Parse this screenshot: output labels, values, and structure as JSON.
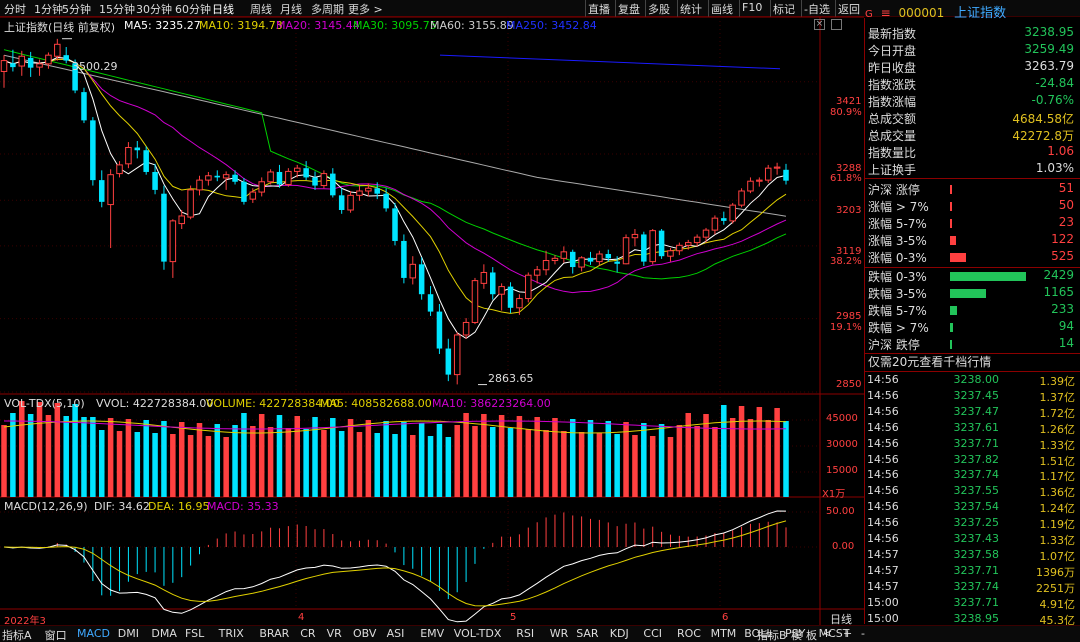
{
  "toolbar": {
    "periods": [
      "分时",
      "1分钟",
      "5分钟",
      "15分钟",
      "30分钟",
      "60分钟",
      "日线",
      "周线",
      "月线",
      "多周期",
      "更多 >"
    ],
    "active_period": "日线",
    "right": [
      "直播",
      "复盘",
      "多股",
      "统计",
      "画线",
      "F10",
      "标记",
      "-自选",
      "返回"
    ]
  },
  "header": {
    "g_label": "G",
    "menu_icon": "menu-icon",
    "code": "000001",
    "name": "上证指数"
  },
  "main_chart": {
    "title": "上证指数(日线 前复权)",
    "ma5": "MA5: 3235.27",
    "ma10": "MA10: 3194.73",
    "ma20": "MA20: 3145.44",
    "ma30": "MA30: 3095.75",
    "ma60": "MA60: 3155.89",
    "ma250": "MA250: 3452.84",
    "high_label": "3500.29",
    "low_label": "2863.65",
    "colors": {
      "ma5": "#ffffff",
      "ma10": "#e0d000",
      "ma20": "#d000d0",
      "ma30": "#00d000",
      "ma60": "#aaaaaa",
      "ma250": "#1a1aff",
      "up": "#ff4040",
      "down": "#00e5ff"
    },
    "y_axis": [
      "3421",
      "80.9%",
      "3288",
      "61.8%",
      "3203",
      "3119",
      "38.2%",
      "2985",
      "19.1%",
      "2850"
    ]
  },
  "vol_chart": {
    "title": "VOL-TDX(5,10)",
    "vvol": "VVOL: 422728384.00",
    "volume": "VOLUME: 422728384.00",
    "ma5": "MA5: 408582688.00",
    "ma10": "MA10: 386223264.00",
    "y_axis": [
      "45000",
      "30000",
      "15000"
    ],
    "unit": "X1万"
  },
  "macd_chart": {
    "title": "MACD(12,26,9)",
    "dif": "DIF: 34.62",
    "dea": "DEA: 16.95",
    "macd": "MACD: 35.33",
    "y_axis": [
      "50.00",
      "0.00"
    ]
  },
  "x_axis": {
    "labels": [
      "2022年3",
      "4",
      "5",
      "6"
    ],
    "period_label": "日线"
  },
  "stats": [
    {
      "k": "最新指数",
      "v": "3238.95",
      "c": "#22c45a"
    },
    {
      "k": "今日开盘",
      "v": "3259.49",
      "c": "#22c45a"
    },
    {
      "k": "昨日收盘",
      "v": "3263.79",
      "c": "#dddddd"
    },
    {
      "k": "指数涨跌",
      "v": "-24.84",
      "c": "#22c45a"
    },
    {
      "k": "指数涨幅",
      "v": "-0.76%",
      "c": "#22c45a"
    },
    {
      "k": "总成交额",
      "v": "4684.58亿",
      "c": "#e0c020"
    },
    {
      "k": "总成交量",
      "v": "42272.8万",
      "c": "#e0c020"
    },
    {
      "k": "指数量比",
      "v": "1.06",
      "c": "#ff4040"
    },
    {
      "k": "上证换手",
      "v": "1.03%",
      "c": "#dddddd"
    }
  ],
  "breadth": [
    {
      "k": "沪深 涨停",
      "v": "51",
      "c": "#ff4040",
      "w": 2
    },
    {
      "k": "涨幅 > 7%",
      "v": "50",
      "c": "#ff4040",
      "w": 2
    },
    {
      "k": "涨幅 5-7%",
      "v": "23",
      "c": "#ff4040",
      "w": 2
    },
    {
      "k": "涨幅 3-5%",
      "v": "122",
      "c": "#ff4040",
      "w": 6
    },
    {
      "k": "涨幅 0-3%",
      "v": "525",
      "c": "#ff4040",
      "w": 16
    },
    {
      "k": "跌幅 0-3%",
      "v": "2429",
      "c": "#22c45a",
      "w": 76
    },
    {
      "k": "跌幅 3-5%",
      "v": "1165",
      "c": "#22c45a",
      "w": 36
    },
    {
      "k": "跌幅 5-7%",
      "v": "233",
      "c": "#22c45a",
      "w": 7
    },
    {
      "k": "跌幅 > 7%",
      "v": "94",
      "c": "#22c45a",
      "w": 3
    },
    {
      "k": "沪深 跌停",
      "v": "14",
      "c": "#22c45a",
      "w": 2
    }
  ],
  "promo": "仅需20元查看千档行情",
  "ticks": [
    {
      "t": "14:56",
      "p": "3238.00",
      "a": "1.39亿"
    },
    {
      "t": "14:56",
      "p": "3237.45",
      "a": "1.37亿"
    },
    {
      "t": "14:56",
      "p": "3237.47",
      "a": "1.72亿"
    },
    {
      "t": "14:56",
      "p": "3237.61",
      "a": "1.26亿"
    },
    {
      "t": "14:56",
      "p": "3237.71",
      "a": "1.33亿"
    },
    {
      "t": "14:56",
      "p": "3237.82",
      "a": "1.51亿"
    },
    {
      "t": "14:56",
      "p": "3237.74",
      "a": "1.17亿"
    },
    {
      "t": "14:56",
      "p": "3237.55",
      "a": "1.36亿"
    },
    {
      "t": "14:56",
      "p": "3237.54",
      "a": "1.24亿"
    },
    {
      "t": "14:56",
      "p": "3237.25",
      "a": "1.19亿"
    },
    {
      "t": "14:56",
      "p": "3237.43",
      "a": "1.33亿"
    },
    {
      "t": "14:57",
      "p": "3237.58",
      "a": "1.07亿"
    },
    {
      "t": "14:57",
      "p": "3237.71",
      "a": "1396万"
    },
    {
      "t": "14:57",
      "p": "3237.74",
      "a": "2251万"
    },
    {
      "t": "15:00",
      "p": "3237.71",
      "a": "4.91亿"
    },
    {
      "t": "15:00",
      "p": "3238.95",
      "a": "45.3亿"
    }
  ],
  "bottom_tabs": [
    "指标A",
    "窗口",
    "MACD",
    "DMI",
    "DMA",
    "FSL",
    "TRIX",
    "BRAR",
    "CR",
    "VR",
    "OBV",
    "ASI",
    "EMV",
    "VOL-TDX",
    "RSI",
    "WR",
    "SAR",
    "KDJ",
    "CCI",
    "ROC",
    "MTM",
    "BOLL",
    "PSY",
    "MCST"
  ],
  "bottom_active": "MACD",
  "bottom_right": [
    "指标B",
    "模",
    "板",
    "<",
    "+",
    "-"
  ],
  "chart_data": {
    "type": "candlestick",
    "title": "上证指数(日线 前复权)",
    "x_labels": [
      "2022年3",
      "4",
      "5",
      "6"
    ],
    "ylim": [
      2850,
      3520
    ],
    "candles": [
      {
        "o": 3440,
        "h": 3470,
        "l": 3410,
        "c": 3460
      },
      {
        "o": 3455,
        "h": 3480,
        "l": 3440,
        "c": 3448
      },
      {
        "o": 3450,
        "h": 3478,
        "l": 3432,
        "c": 3468
      },
      {
        "o": 3465,
        "h": 3476,
        "l": 3430,
        "c": 3447
      },
      {
        "o": 3448,
        "h": 3462,
        "l": 3432,
        "c": 3454
      },
      {
        "o": 3454,
        "h": 3475,
        "l": 3445,
        "c": 3470
      },
      {
        "o": 3468,
        "h": 3500,
        "l": 3460,
        "c": 3490
      },
      {
        "o": 3470,
        "h": 3485,
        "l": 3455,
        "c": 3460
      },
      {
        "o": 3455,
        "h": 3462,
        "l": 3400,
        "c": 3405
      },
      {
        "o": 3402,
        "h": 3410,
        "l": 3345,
        "c": 3350
      },
      {
        "o": 3350,
        "h": 3356,
        "l": 3230,
        "c": 3240
      },
      {
        "o": 3240,
        "h": 3258,
        "l": 3190,
        "c": 3200
      },
      {
        "o": 3195,
        "h": 3260,
        "l": 3115,
        "c": 3250
      },
      {
        "o": 3252,
        "h": 3275,
        "l": 3245,
        "c": 3268
      },
      {
        "o": 3270,
        "h": 3310,
        "l": 3262,
        "c": 3300
      },
      {
        "o": 3300,
        "h": 3312,
        "l": 3280,
        "c": 3295
      },
      {
        "o": 3295,
        "h": 3302,
        "l": 3250,
        "c": 3255
      },
      {
        "o": 3255,
        "h": 3270,
        "l": 3214,
        "c": 3222
      },
      {
        "o": 3215,
        "h": 3230,
        "l": 3075,
        "c": 3090
      },
      {
        "o": 3090,
        "h": 3168,
        "l": 3060,
        "c": 3165
      },
      {
        "o": 3160,
        "h": 3185,
        "l": 3150,
        "c": 3174
      },
      {
        "o": 3172,
        "h": 3230,
        "l": 3168,
        "c": 3222
      },
      {
        "o": 3222,
        "h": 3248,
        "l": 3212,
        "c": 3240
      },
      {
        "o": 3240,
        "h": 3255,
        "l": 3230,
        "c": 3248
      },
      {
        "o": 3248,
        "h": 3258,
        "l": 3238,
        "c": 3245
      },
      {
        "o": 3244,
        "h": 3256,
        "l": 3222,
        "c": 3250
      },
      {
        "o": 3250,
        "h": 3258,
        "l": 3232,
        "c": 3237
      },
      {
        "o": 3237,
        "h": 3244,
        "l": 3195,
        "c": 3200
      },
      {
        "o": 3205,
        "h": 3225,
        "l": 3198,
        "c": 3218
      },
      {
        "o": 3218,
        "h": 3245,
        "l": 3210,
        "c": 3237
      },
      {
        "o": 3237,
        "h": 3260,
        "l": 3232,
        "c": 3255
      },
      {
        "o": 3255,
        "h": 3268,
        "l": 3226,
        "c": 3232
      },
      {
        "o": 3232,
        "h": 3262,
        "l": 3228,
        "c": 3256
      },
      {
        "o": 3256,
        "h": 3268,
        "l": 3245,
        "c": 3262
      },
      {
        "o": 3262,
        "h": 3275,
        "l": 3240,
        "c": 3245
      },
      {
        "o": 3245,
        "h": 3256,
        "l": 3222,
        "c": 3230
      },
      {
        "o": 3230,
        "h": 3258,
        "l": 3225,
        "c": 3252
      },
      {
        "o": 3252,
        "h": 3262,
        "l": 3208,
        "c": 3212
      },
      {
        "o": 3212,
        "h": 3225,
        "l": 3178,
        "c": 3185
      },
      {
        "o": 3185,
        "h": 3220,
        "l": 3180,
        "c": 3212
      },
      {
        "o": 3212,
        "h": 3230,
        "l": 3202,
        "c": 3220
      },
      {
        "o": 3220,
        "h": 3234,
        "l": 3210,
        "c": 3225
      },
      {
        "o": 3225,
        "h": 3236,
        "l": 3205,
        "c": 3215
      },
      {
        "o": 3215,
        "h": 3225,
        "l": 3182,
        "c": 3188
      },
      {
        "o": 3188,
        "h": 3198,
        "l": 3120,
        "c": 3128
      },
      {
        "o": 3128,
        "h": 3140,
        "l": 3050,
        "c": 3060
      },
      {
        "o": 3060,
        "h": 3100,
        "l": 3048,
        "c": 3085
      },
      {
        "o": 3085,
        "h": 3098,
        "l": 3020,
        "c": 3030
      },
      {
        "o": 3030,
        "h": 3045,
        "l": 2990,
        "c": 2998
      },
      {
        "o": 2998,
        "h": 3012,
        "l": 2920,
        "c": 2930
      },
      {
        "o": 2930,
        "h": 2948,
        "l": 2870,
        "c": 2882
      },
      {
        "o": 2882,
        "h": 2960,
        "l": 2864,
        "c": 2955
      },
      {
        "o": 2955,
        "h": 2986,
        "l": 2948,
        "c": 2978
      },
      {
        "o": 2978,
        "h": 3060,
        "l": 2975,
        "c": 3055
      },
      {
        "o": 3050,
        "h": 3085,
        "l": 3040,
        "c": 3070
      },
      {
        "o": 3070,
        "h": 3080,
        "l": 3020,
        "c": 3030
      },
      {
        "o": 3030,
        "h": 3050,
        "l": 3000,
        "c": 3044
      },
      {
        "o": 3044,
        "h": 3052,
        "l": 2995,
        "c": 3005
      },
      {
        "o": 3005,
        "h": 3030,
        "l": 2992,
        "c": 3022
      },
      {
        "o": 3022,
        "h": 3070,
        "l": 3015,
        "c": 3065
      },
      {
        "o": 3065,
        "h": 3082,
        "l": 3050,
        "c": 3075
      },
      {
        "o": 3075,
        "h": 3110,
        "l": 3065,
        "c": 3092
      },
      {
        "o": 3092,
        "h": 3102,
        "l": 3085,
        "c": 3096
      },
      {
        "o": 3096,
        "h": 3118,
        "l": 3088,
        "c": 3108
      },
      {
        "o": 3108,
        "h": 3112,
        "l": 3068,
        "c": 3080
      },
      {
        "o": 3080,
        "h": 3100,
        "l": 3072,
        "c": 3097
      },
      {
        "o": 3097,
        "h": 3108,
        "l": 3084,
        "c": 3090
      },
      {
        "o": 3090,
        "h": 3110,
        "l": 3083,
        "c": 3104
      },
      {
        "o": 3104,
        "h": 3112,
        "l": 3090,
        "c": 3096
      },
      {
        "o": 3090,
        "h": 3100,
        "l": 3070,
        "c": 3086
      },
      {
        "o": 3086,
        "h": 3140,
        "l": 3085,
        "c": 3134
      },
      {
        "o": 3134,
        "h": 3150,
        "l": 3118,
        "c": 3140
      },
      {
        "o": 3140,
        "h": 3145,
        "l": 3082,
        "c": 3090
      },
      {
        "o": 3090,
        "h": 3150,
        "l": 3085,
        "c": 3147
      },
      {
        "o": 3147,
        "h": 3150,
        "l": 3095,
        "c": 3100
      },
      {
        "o": 3100,
        "h": 3115,
        "l": 3090,
        "c": 3110
      },
      {
        "o": 3110,
        "h": 3125,
        "l": 3102,
        "c": 3120
      },
      {
        "o": 3120,
        "h": 3130,
        "l": 3112,
        "c": 3125
      },
      {
        "o": 3125,
        "h": 3140,
        "l": 3118,
        "c": 3135
      },
      {
        "o": 3135,
        "h": 3152,
        "l": 3125,
        "c": 3148
      },
      {
        "o": 3148,
        "h": 3175,
        "l": 3140,
        "c": 3170
      },
      {
        "o": 3170,
        "h": 3182,
        "l": 3158,
        "c": 3165
      },
      {
        "o": 3165,
        "h": 3198,
        "l": 3160,
        "c": 3194
      },
      {
        "o": 3194,
        "h": 3225,
        "l": 3190,
        "c": 3220
      },
      {
        "o": 3220,
        "h": 3245,
        "l": 3216,
        "c": 3238
      },
      {
        "o": 3238,
        "h": 3245,
        "l": 3228,
        "c": 3240
      },
      {
        "o": 3240,
        "h": 3268,
        "l": 3235,
        "c": 3262
      },
      {
        "o": 3262,
        "h": 3272,
        "l": 3250,
        "c": 3264
      },
      {
        "o": 3259,
        "h": 3270,
        "l": 3232,
        "c": 3239
      }
    ],
    "annotations": [
      {
        "text": "3500.29",
        "value": 3500.29
      },
      {
        "text": "2863.65",
        "value": 2863.65
      }
    ]
  }
}
